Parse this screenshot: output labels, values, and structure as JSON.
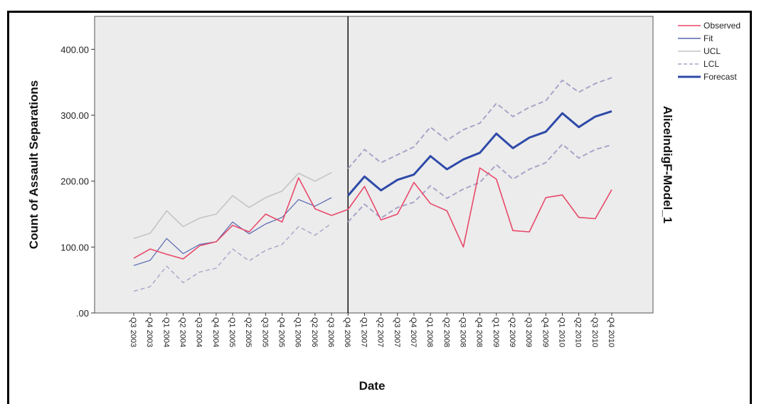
{
  "chart_data": {
    "type": "line",
    "xlabel": "Date",
    "ylabel": "Count of Assault Separations",
    "side_title": "AliceIndigF-Model_1",
    "ylim": [
      0,
      450
    ],
    "yticks": [
      0,
      100,
      200,
      300,
      400
    ],
    "ytick_labels": [
      ".00",
      "100.00",
      "200.00",
      "300.00",
      "400.00"
    ],
    "categories": [
      "Q3 2003",
      "Q4 2003",
      "Q1 2004",
      "Q2 2004",
      "Q3 2004",
      "Q4 2004",
      "Q1 2005",
      "Q2 2005",
      "Q3 2005",
      "Q4 2005",
      "Q1 2006",
      "Q2 2006",
      "Q3 2006",
      "Q4 2006",
      "Q1 2007",
      "Q2 2007",
      "Q3 2007",
      "Q4 2007",
      "Q1 2008",
      "Q2 2008",
      "Q3 2008",
      "Q4 2008",
      "Q1 2009",
      "Q2 2009",
      "Q3 2009",
      "Q4 2009",
      "Q1 2010",
      "Q2 2010",
      "Q3 2010",
      "Q4 2010"
    ],
    "forecast_start": "Q4 2006",
    "colors": {
      "observed": "#e8496a",
      "fit": "#5566b0",
      "ucl": "#c4c4c4",
      "lcl": "#a9a4c8",
      "forecast": "#2f4aa8",
      "plot_bg": "#ececec"
    },
    "legend_position": "top-right",
    "series": [
      {
        "name": "Observed",
        "key": "observed",
        "values": [
          83,
          97,
          89,
          82,
          102,
          108,
          133,
          123,
          150,
          138,
          205,
          158,
          148,
          157,
          192,
          141,
          150,
          198,
          166,
          155,
          100,
          220,
          203,
          125,
          123,
          175,
          179,
          145,
          143,
          187
        ]
      },
      {
        "name": "Fit",
        "key": "fit",
        "values": [
          72,
          80,
          113,
          90,
          104,
          108,
          138,
          120,
          135,
          145,
          172,
          162,
          175,
          null,
          null,
          null,
          null,
          null,
          null,
          null,
          null,
          null,
          null,
          null,
          null,
          null,
          null,
          null,
          null,
          null
        ]
      },
      {
        "name": "UCL",
        "key": "ucl",
        "values": [
          113,
          121,
          155,
          131,
          144,
          150,
          178,
          160,
          175,
          185,
          212,
          200,
          213,
          null,
          null,
          null,
          null,
          null,
          null,
          null,
          null,
          null,
          null,
          null,
          null,
          null,
          null,
          null,
          null,
          null
        ]
      },
      {
        "name": "LCL",
        "key": "lcl",
        "values": [
          33,
          40,
          71,
          46,
          62,
          68,
          97,
          79,
          95,
          104,
          131,
          118,
          136,
          null,
          null,
          null,
          null,
          null,
          null,
          null,
          null,
          null,
          null,
          null,
          null,
          null,
          null,
          null,
          null,
          null
        ]
      },
      {
        "name": "UCL forecast",
        "key": "ucl_fc",
        "values": [
          null,
          null,
          null,
          null,
          null,
          null,
          null,
          null,
          null,
          null,
          null,
          null,
          null,
          219,
          248,
          228,
          240,
          252,
          282,
          262,
          278,
          288,
          318,
          298,
          312,
          322,
          353,
          335,
          348,
          357
        ]
      },
      {
        "name": "LCL forecast",
        "key": "lcl_fc",
        "values": [
          null,
          null,
          null,
          null,
          null,
          null,
          null,
          null,
          null,
          null,
          null,
          null,
          null,
          138,
          165,
          144,
          160,
          168,
          193,
          174,
          188,
          198,
          225,
          203,
          218,
          228,
          256,
          235,
          248,
          255
        ]
      },
      {
        "name": "Forecast",
        "key": "forecast",
        "values": [
          null,
          null,
          null,
          null,
          null,
          null,
          null,
          null,
          null,
          null,
          null,
          null,
          null,
          178,
          207,
          186,
          202,
          210,
          238,
          218,
          233,
          243,
          272,
          250,
          266,
          275,
          303,
          282,
          298,
          306
        ]
      }
    ],
    "legend": [
      {
        "label": "Observed",
        "key": "observed",
        "style": "solid"
      },
      {
        "label": "Fit",
        "key": "fit",
        "style": "solid"
      },
      {
        "label": "UCL",
        "key": "ucl",
        "style": "solid"
      },
      {
        "label": "LCL",
        "key": "lcl",
        "style": "dashed"
      },
      {
        "label": "Forecast",
        "key": "forecast",
        "style": "solid"
      }
    ]
  }
}
